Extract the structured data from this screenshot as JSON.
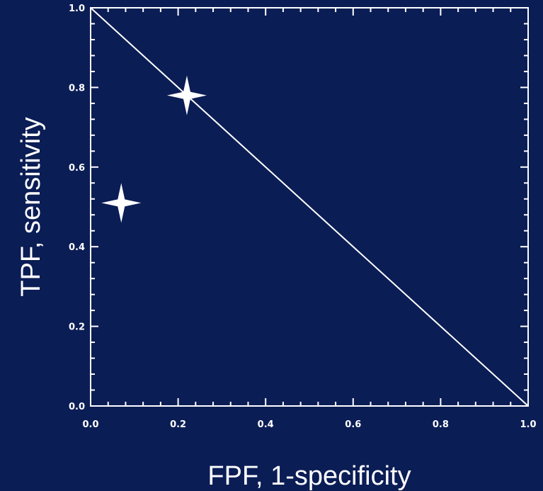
{
  "chart_data": {
    "type": "scatter",
    "title": "",
    "xlabel": "FPF, 1-specificity",
    "ylabel": "TPF, sensitivity",
    "xlim": [
      0.0,
      1.0
    ],
    "ylim": [
      0.0,
      1.0
    ],
    "x_ticks": [
      "0.0",
      "0.2",
      "0.4",
      "0.6",
      "0.8",
      "1.0"
    ],
    "y_ticks": [
      "0.0",
      "0.2",
      "0.4",
      "0.6",
      "0.8",
      "1.0"
    ],
    "grid": false,
    "reference_line": {
      "x": [
        0.0,
        1.0
      ],
      "y": [
        1.0,
        0.0
      ]
    },
    "series": [
      {
        "marker": "four-point-star",
        "points": [
          {
            "x": 0.07,
            "y": 0.51
          },
          {
            "x": 0.22,
            "y": 0.78
          }
        ]
      }
    ],
    "colors": {
      "background": "#0b1d55",
      "foreground": "#ffffff"
    }
  }
}
